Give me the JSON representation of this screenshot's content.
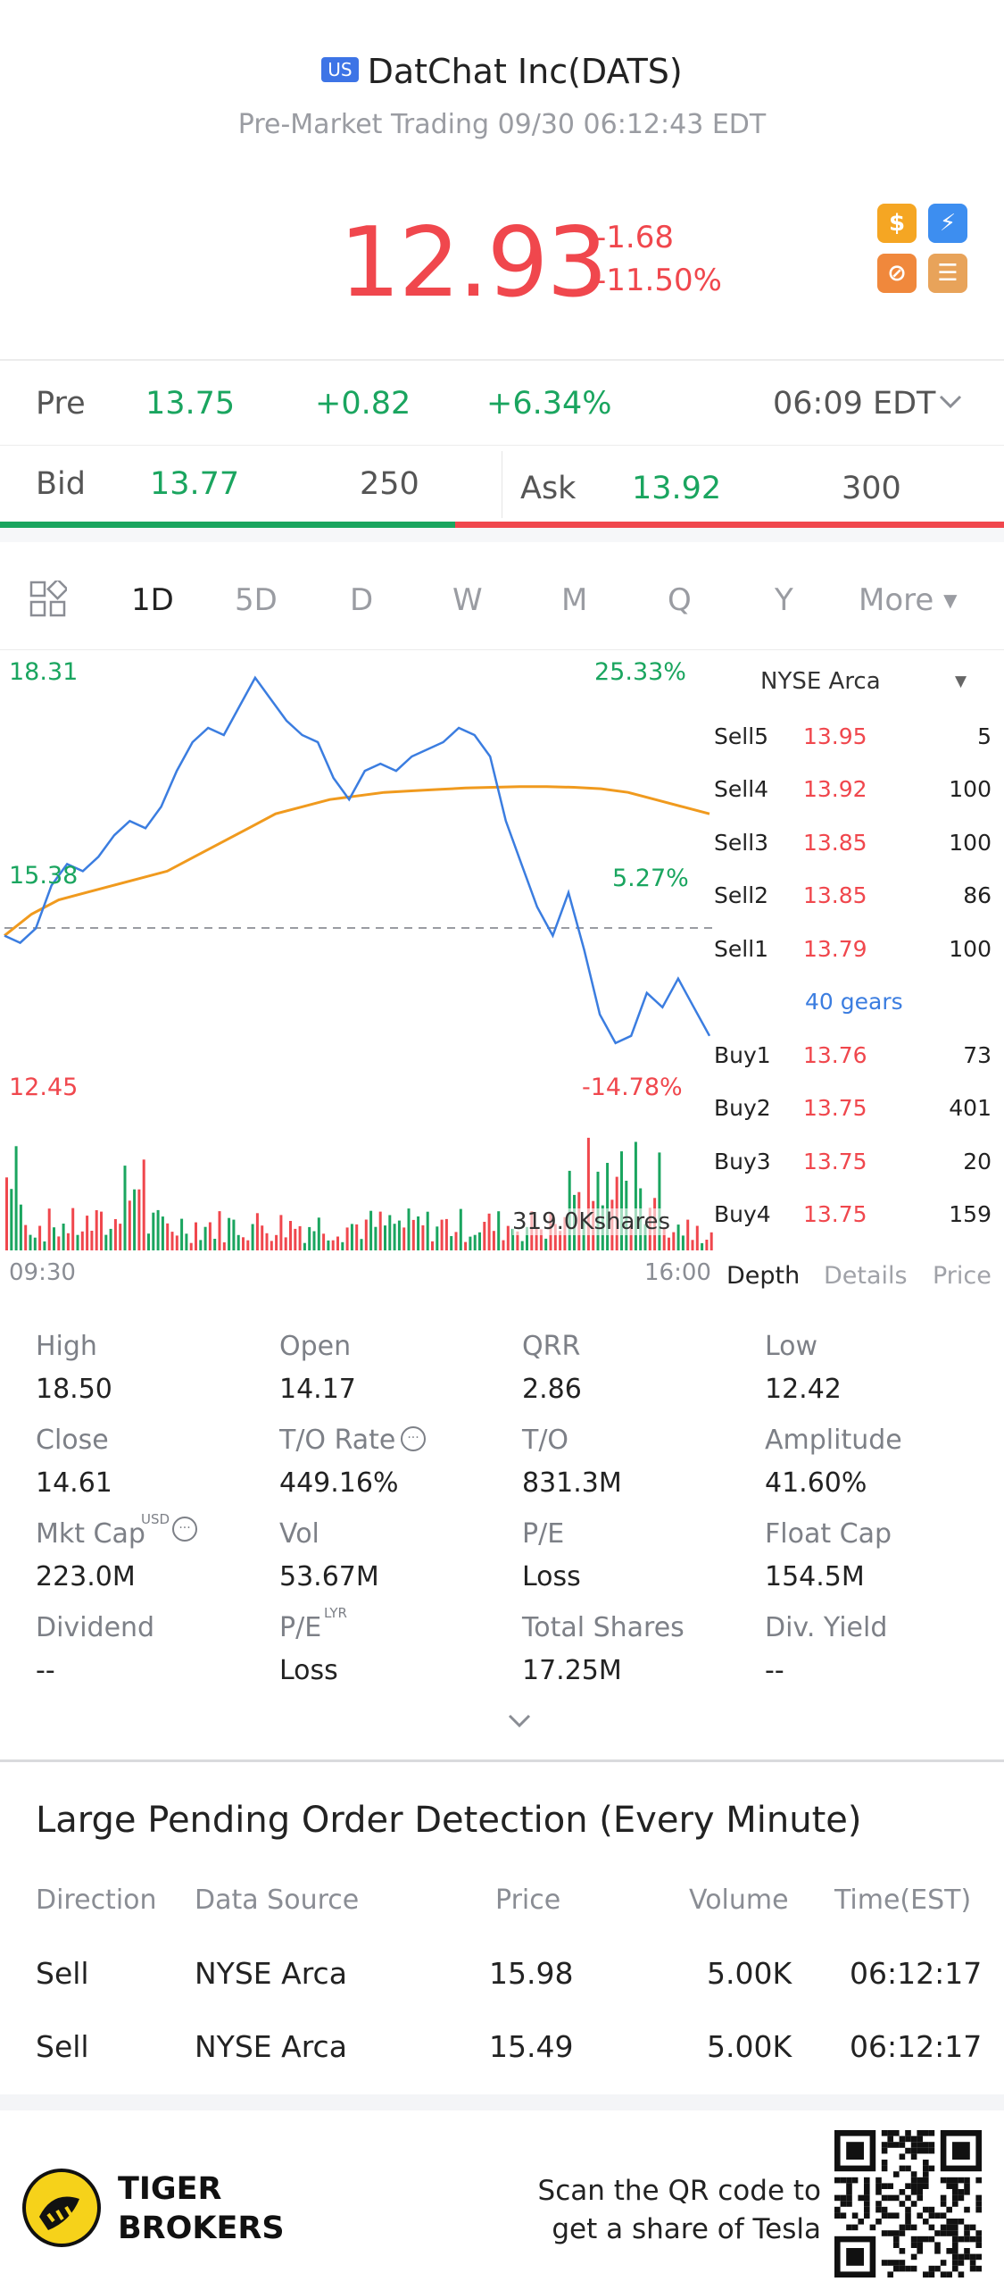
{
  "header": {
    "market_badge": "US",
    "title": "DatChat Inc(DATS)",
    "subtitle": "Pre-Market Trading 09/30 06:12:43 EDT",
    "price": "12.93",
    "change": "-1.68",
    "change_pct": "-11.50%"
  },
  "pre_row": {
    "label": "Pre",
    "price": "13.75",
    "change": "+0.82",
    "change_pct": "+6.34%",
    "time": "06:09 EDT"
  },
  "bid_ask": {
    "bid_label": "Bid",
    "bid_price": "13.77",
    "bid_size": "250",
    "ask_label": "Ask",
    "ask_price": "13.92",
    "ask_size": "300"
  },
  "tabs": [
    "1D",
    "5D",
    "D",
    "W",
    "M",
    "Q",
    "Y",
    "More"
  ],
  "chart": {
    "high_label": "18.31",
    "high_pct": "25.33%",
    "mid_label": "15.38",
    "mid_pct": "5.27%",
    "low_label": "12.45",
    "low_pct": "-14.78%",
    "volume_label": "319.0Kshares",
    "start_time": "09:30",
    "end_time": "16:00"
  },
  "chart_data": {
    "type": "line",
    "x_range": [
      "09:30",
      "16:00"
    ],
    "ylim": [
      12.45,
      18.31
    ],
    "series": [
      {
        "values": [
          14.6,
          14.5,
          14.7,
          15.3,
          15.6,
          15.5,
          15.7,
          16.0,
          16.2,
          16.1,
          16.4,
          16.9,
          17.3,
          17.5,
          17.4,
          17.8,
          18.2,
          17.9,
          17.6,
          17.4,
          17.3,
          16.8,
          16.5,
          16.9,
          17.0,
          16.9,
          17.1,
          17.2,
          17.3,
          17.5,
          17.4,
          17.1,
          16.2,
          15.6,
          15.0,
          14.6,
          15.2,
          14.4,
          13.5,
          13.1,
          13.2,
          13.8,
          13.6,
          14.0,
          13.6,
          13.2
        ]
      },
      {
        "values": [
          14.6,
          14.9,
          15.1,
          15.2,
          15.3,
          15.4,
          15.5,
          15.7,
          15.9,
          16.1,
          16.3,
          16.4,
          16.5,
          16.55,
          16.6,
          16.62,
          16.64,
          16.66,
          16.67,
          16.68,
          16.68,
          16.67,
          16.65,
          16.6,
          16.5,
          16.4,
          16.3
        ]
      }
    ]
  },
  "orderbook": {
    "exchange": "NYSE Arca",
    "asks": [
      {
        "label": "Sell5",
        "price": "13.95",
        "vol": "5"
      },
      {
        "label": "Sell4",
        "price": "13.92",
        "vol": "100"
      },
      {
        "label": "Sell3",
        "price": "13.85",
        "vol": "100"
      },
      {
        "label": "Sell2",
        "price": "13.85",
        "vol": "86"
      },
      {
        "label": "Sell1",
        "price": "13.79",
        "vol": "100"
      }
    ],
    "gears": "40 gears",
    "bids": [
      {
        "label": "Buy1",
        "price": "13.76",
        "vol": "73"
      },
      {
        "label": "Buy2",
        "price": "13.75",
        "vol": "401"
      },
      {
        "label": "Buy3",
        "price": "13.75",
        "vol": "20"
      },
      {
        "label": "Buy4",
        "price": "13.75",
        "vol": "159"
      }
    ],
    "tabs": [
      "Depth",
      "Details",
      "Price"
    ]
  },
  "stats": {
    "high": {
      "label": "High",
      "value": "18.50"
    },
    "open": {
      "label": "Open",
      "value": "14.17"
    },
    "qrr": {
      "label": "QRR",
      "value": "2.86"
    },
    "low": {
      "label": "Low",
      "value": "12.42"
    },
    "close": {
      "label": "Close",
      "value": "14.61"
    },
    "to_rate": {
      "label": "T/O Rate",
      "value": "449.16%"
    },
    "to": {
      "label": "T/O",
      "value": "831.3M"
    },
    "amplitude": {
      "label": "Amplitude",
      "value": "41.60%"
    },
    "mkt_cap": {
      "label": "Mkt Cap",
      "sup": "USD",
      "value": "223.0M"
    },
    "vol": {
      "label": "Vol",
      "value": "53.67M"
    },
    "pe": {
      "label": "P/E",
      "value": "Loss"
    },
    "float_cap": {
      "label": "Float Cap",
      "value": "154.5M"
    },
    "dividend": {
      "label": "Dividend",
      "value": "--"
    },
    "pe_lyr": {
      "label": "P/E",
      "sup": "LYR",
      "value": "Loss"
    },
    "total_shares": {
      "label": "Total Shares",
      "value": "17.25M"
    },
    "div_yield": {
      "label": "Div. Yield",
      "value": "--"
    }
  },
  "large_orders": {
    "title": "Large Pending Order Detection (Every Minute)",
    "headers": [
      "Direction",
      "Data Source",
      "Price",
      "Volume",
      "Time(EST)"
    ],
    "rows": [
      {
        "direction": "Sell",
        "source": "NYSE Arca",
        "price": "15.98",
        "volume": "5.00K",
        "time": "06:12:17"
      },
      {
        "direction": "Sell",
        "source": "NYSE Arca",
        "price": "15.49",
        "volume": "5.00K",
        "time": "06:12:17"
      }
    ]
  },
  "footer": {
    "brand_line1": "TIGER",
    "brand_line2": "BROKERS",
    "qr_line1": "Scan the QR code to",
    "qr_line2": "get a share of Tesla"
  },
  "colors": {
    "red": "#f0474d",
    "green": "#1aa55f",
    "blue": "#3b7de0",
    "orange": "#f09a1e"
  }
}
